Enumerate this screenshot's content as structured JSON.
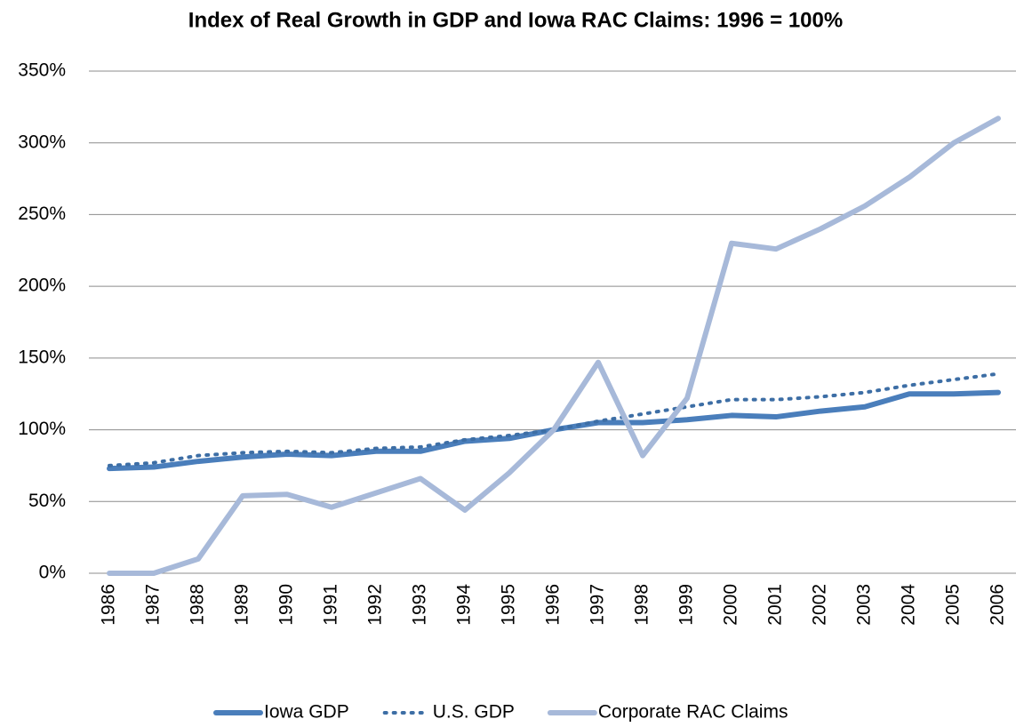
{
  "chart_data": {
    "type": "line",
    "title": "Index of Real Growth in GDP and Iowa RAC Claims: 1996 = 100%",
    "categories": [
      "1986",
      "1987",
      "1988",
      "1989",
      "1990",
      "1991",
      "1992",
      "1993",
      "1994",
      "1995",
      "1996",
      "1997",
      "1998",
      "1999",
      "2000",
      "2001",
      "2002",
      "2003",
      "2004",
      "2005",
      "2006"
    ],
    "series": [
      {
        "name": "Iowa GDP",
        "color": "#4a7ebb",
        "dash": "solid",
        "values": [
          73,
          74,
          78,
          81,
          83,
          82,
          85,
          85,
          92,
          94,
          100,
          105,
          105,
          107,
          110,
          109,
          113,
          116,
          125,
          125,
          126
        ]
      },
      {
        "name": "U.S. GDP",
        "color": "#3d6ea5",
        "dash": "dotted",
        "values": [
          75,
          77,
          82,
          84,
          85,
          84,
          87,
          88,
          93,
          96,
          100,
          106,
          111,
          116,
          121,
          121,
          123,
          126,
          131,
          135,
          139
        ]
      },
      {
        "name": "Corporate RAC Claims",
        "color": "#a7b9d9",
        "dash": "solid",
        "values": [
          0,
          0,
          10,
          54,
          55,
          46,
          56,
          66,
          44,
          70,
          100,
          147,
          82,
          122,
          230,
          226,
          240,
          256,
          276,
          300,
          317
        ]
      }
    ],
    "ylim": [
      0,
      350
    ],
    "yticks": [
      {
        "value": 0,
        "label": "0%"
      },
      {
        "value": 50,
        "label": "50%"
      },
      {
        "value": 100,
        "label": "100%"
      },
      {
        "value": 150,
        "label": "150%"
      },
      {
        "value": 200,
        "label": "200%"
      },
      {
        "value": 250,
        "label": "250%"
      },
      {
        "value": 300,
        "label": "300%"
      },
      {
        "value": 350,
        "label": "350%"
      }
    ],
    "grid": true,
    "legend": "bottom"
  }
}
